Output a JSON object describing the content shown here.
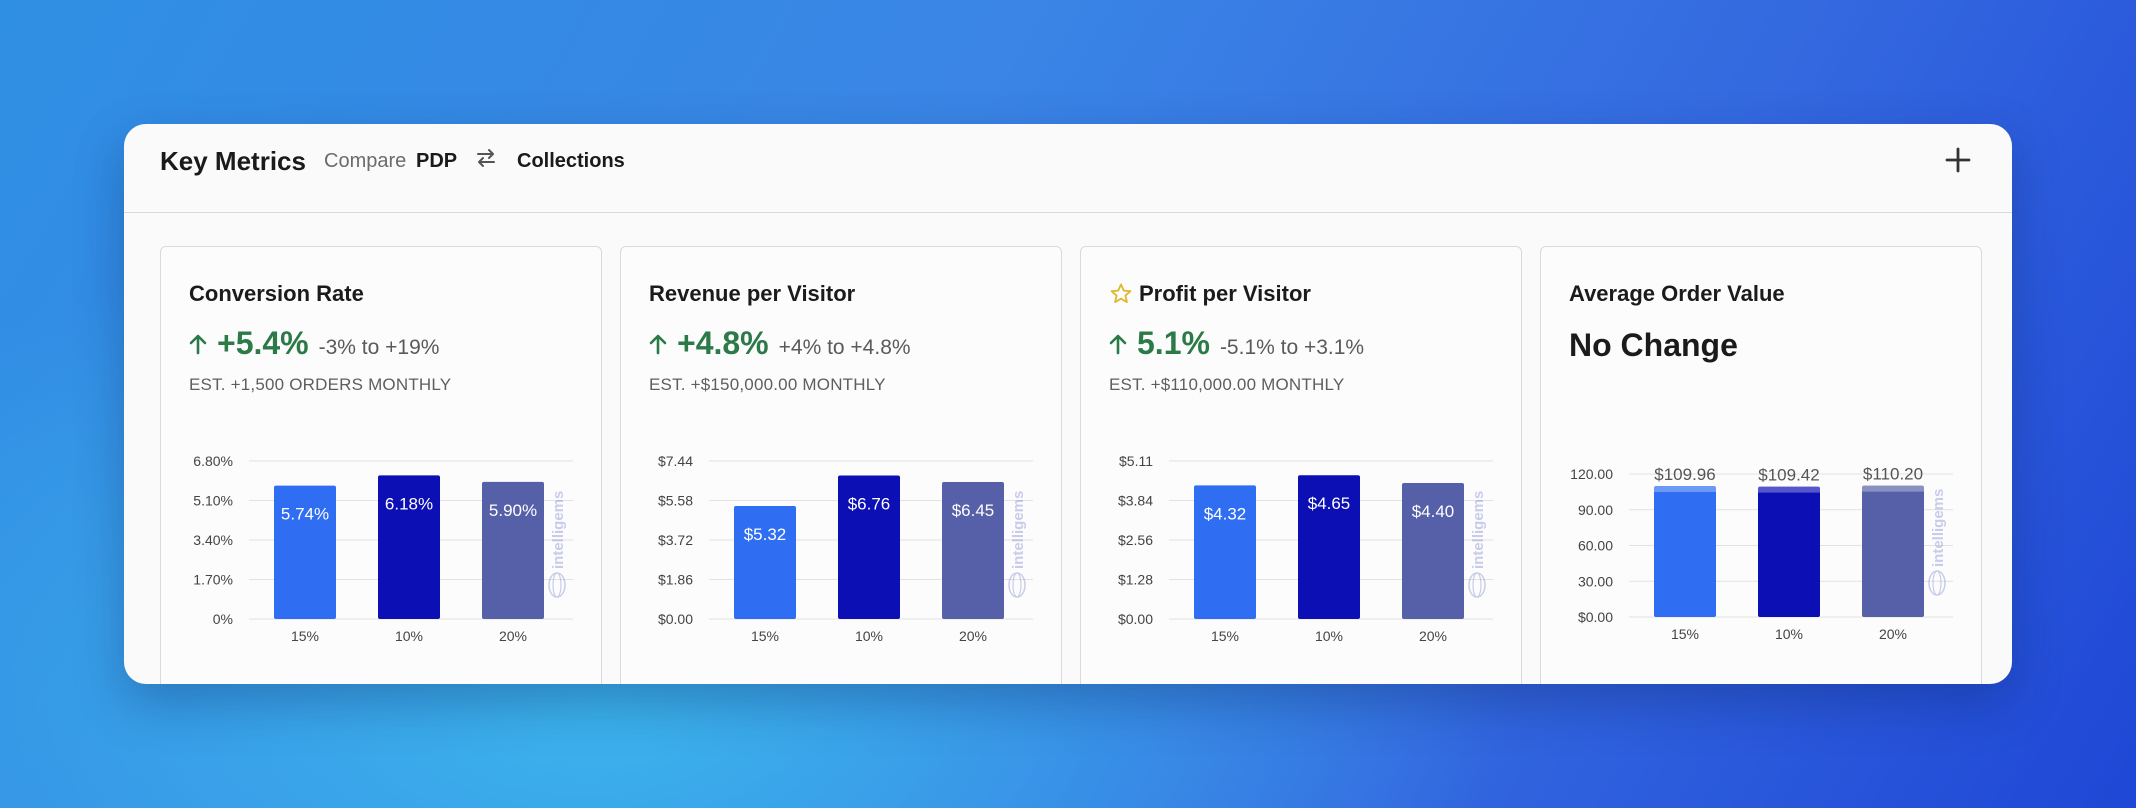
{
  "header": {
    "title": "Key Metrics",
    "compare_label": "Compare",
    "variant_a": "PDP",
    "variant_b": "Collections",
    "swap_icon": "swap-arrows-icon",
    "add_icon": "plus-icon"
  },
  "colors": {
    "bar_15": "#2f6ef2",
    "bar_10": "#0b0fb4",
    "bar_20": "#5660a8",
    "positive": "#2b7a47",
    "star": "#e0b72a"
  },
  "cards": [
    {
      "title": "Conversion Rate",
      "metric": "+5.4%",
      "range": "-3% to +19%",
      "estimate": "EST. +1,500 ORDERS MONTHLY",
      "watermark": "intelligems"
    },
    {
      "title": "Revenue per Visitor",
      "metric": "+4.8%",
      "range": "+4% to +4.8%",
      "estimate": "EST. +$150,000.00 MONTHLY",
      "watermark": "intelligems"
    },
    {
      "title": "Profit per Visitor",
      "starred": true,
      "metric": "5.1%",
      "range": "-5.1% to +3.1%",
      "estimate": "EST. +$110,000.00 MONTHLY",
      "watermark": "intelligems"
    },
    {
      "title": "Average Order Value",
      "status": "No Change",
      "watermark": "intelligems"
    }
  ],
  "chart_data": [
    {
      "type": "bar",
      "categories": [
        "15%",
        "10%",
        "20%"
      ],
      "values": [
        5.74,
        6.18,
        5.9
      ],
      "value_labels": [
        "5.74%",
        "6.18%",
        "5.90%"
      ],
      "yticks": [
        "0%",
        "1.70%",
        "3.40%",
        "5.10%",
        "6.80%"
      ],
      "ylim": [
        0,
        6.8
      ],
      "grid": true
    },
    {
      "type": "bar",
      "categories": [
        "15%",
        "10%",
        "20%"
      ],
      "values": [
        5.32,
        6.76,
        6.45
      ],
      "value_labels": [
        "$5.32",
        "$6.76",
        "$6.45"
      ],
      "yticks": [
        "$0.00",
        "$1.86",
        "$3.72",
        "$5.58",
        "$7.44"
      ],
      "ylim": [
        0,
        7.44
      ],
      "grid": true
    },
    {
      "type": "bar",
      "categories": [
        "15%",
        "10%",
        "20%"
      ],
      "values": [
        4.32,
        4.65,
        4.4
      ],
      "value_labels": [
        "$4.32",
        "$4.65",
        "$4.40"
      ],
      "yticks": [
        "$0.00",
        "$1.28",
        "$2.56",
        "$3.84",
        "$5.11"
      ],
      "ylim": [
        0,
        5.11
      ],
      "grid": true
    },
    {
      "type": "bar",
      "categories": [
        "15%",
        "10%",
        "20%"
      ],
      "values": [
        109.96,
        109.42,
        110.2
      ],
      "value_labels": [
        "$109.96",
        "$109.42",
        "$110.20"
      ],
      "yticks": [
        "$0.00",
        "30.00",
        "60.00",
        "90.00",
        "120.00"
      ],
      "ylim": [
        0,
        120
      ],
      "grid": true,
      "labels_above": true
    }
  ]
}
